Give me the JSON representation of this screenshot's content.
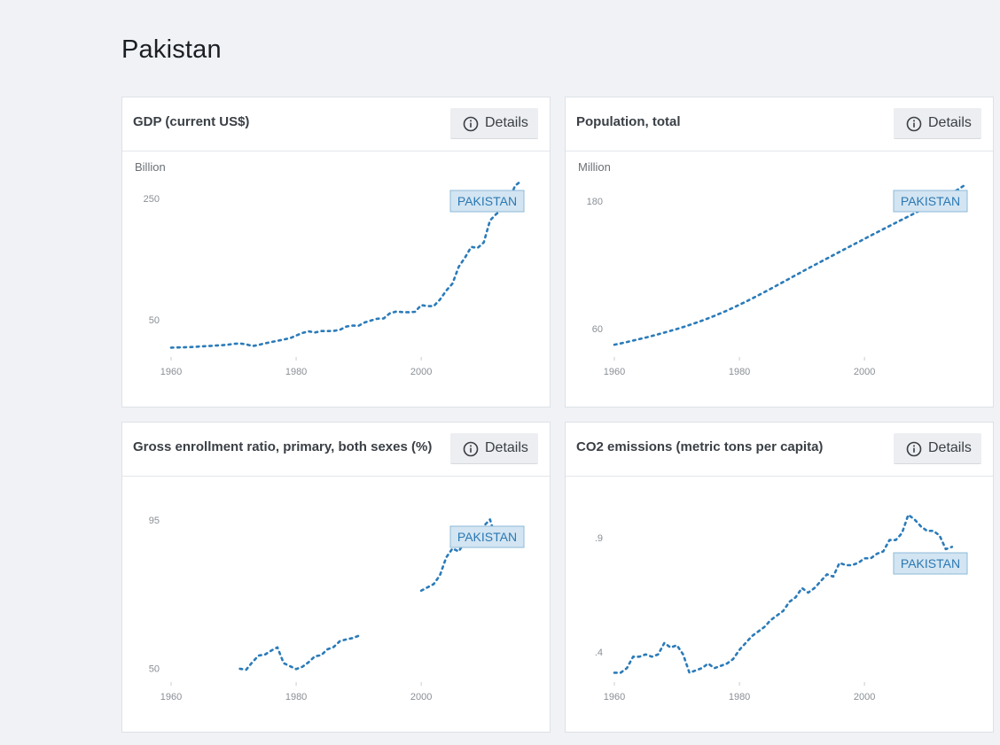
{
  "page_title": "Pakistan",
  "details_label": "Details",
  "colors": {
    "line": "#2b7bb9",
    "background": "#f0f2f5",
    "legend_fill": "#d3e5f2"
  },
  "icons": {
    "details": "info-icon"
  },
  "chart_data": [
    {
      "type": "line",
      "title": "GDP (current US$)",
      "unit": "Billion",
      "series_label": "PAKISTAN",
      "yticks": [
        {
          "label": "250",
          "value": 250
        },
        {
          "label": "50",
          "value": 50
        }
      ],
      "xticks": [
        1960,
        1980,
        2000
      ],
      "xlim": [
        1960,
        2016
      ],
      "ylim": [
        0,
        272
      ],
      "x": [
        1960,
        1961,
        1962,
        1963,
        1964,
        1965,
        1966,
        1967,
        1968,
        1969,
        1970,
        1971,
        1972,
        1973,
        1974,
        1975,
        1976,
        1977,
        1978,
        1979,
        1980,
        1981,
        1982,
        1983,
        1984,
        1985,
        1986,
        1987,
        1988,
        1989,
        1990,
        1991,
        1992,
        1993,
        1994,
        1995,
        1996,
        1997,
        1998,
        1999,
        2000,
        2001,
        2002,
        2003,
        2004,
        2005,
        2006,
        2007,
        2008,
        2009,
        2010,
        2011,
        2012,
        2013,
        2014,
        2015,
        2016
      ],
      "y": [
        3.7,
        4.1,
        4.3,
        4.6,
        5.2,
        5.9,
        6.4,
        7.1,
        7.7,
        8.5,
        10.0,
        10.6,
        9.3,
        6.3,
        8.3,
        10.8,
        12.9,
        15.0,
        17.2,
        19.3,
        23.7,
        28.0,
        30.7,
        28.7,
        31.2,
        31.1,
        31.4,
        33.2,
        38.5,
        40.2,
        40.0,
        45.5,
        48.6,
        51.5,
        51.9,
        60.6,
        63.3,
        62.4,
        62.2,
        62.9,
        73.9,
        72.3,
        72.3,
        83.2,
        97.9,
        109.5,
        137.3,
        152.4,
        170.1,
        168.2,
        177.4,
        213.7,
        224.4,
        231.2,
        244.4,
        271.1,
        278.9
      ]
    },
    {
      "type": "line",
      "title": "Population, total",
      "unit": "Million",
      "series_label": "PAKISTAN",
      "yticks": [
        {
          "label": "180",
          "value": 180
        },
        {
          "label": "60",
          "value": 60
        }
      ],
      "xticks": [
        1960,
        1980,
        2000
      ],
      "xlim": [
        1960,
        2016
      ],
      "ylim": [
        40,
        195
      ],
      "x": [
        1960,
        1961,
        1962,
        1963,
        1964,
        1965,
        1966,
        1967,
        1968,
        1969,
        1970,
        1971,
        1972,
        1973,
        1974,
        1975,
        1976,
        1977,
        1978,
        1979,
        1980,
        1981,
        1982,
        1983,
        1984,
        1985,
        1986,
        1987,
        1988,
        1989,
        1990,
        1991,
        1992,
        1993,
        1994,
        1995,
        1996,
        1997,
        1998,
        1999,
        2000,
        2001,
        2002,
        2003,
        2004,
        2005,
        2006,
        2007,
        2008,
        2009,
        2010,
        2011,
        2012,
        2013,
        2014,
        2015,
        2016
      ],
      "y": [
        44.9,
        46.1,
        47.4,
        48.8,
        50.2,
        51.6,
        53.1,
        54.7,
        56.3,
        58.0,
        59.7,
        61.5,
        63.4,
        65.4,
        67.5,
        69.7,
        72.0,
        74.5,
        77.0,
        79.7,
        82.5,
        85.3,
        88.3,
        91.3,
        94.4,
        97.5,
        100.7,
        103.9,
        107.1,
        110.3,
        113.5,
        116.7,
        119.8,
        122.9,
        126.0,
        129.1,
        132.2,
        135.3,
        138.4,
        141.4,
        144.5,
        147.6,
        150.6,
        153.6,
        156.6,
        159.6,
        162.6,
        165.5,
        168.5,
        171.6,
        174.6,
        177.8,
        181.0,
        184.3,
        187.6,
        191.1,
        194.9
      ]
    },
    {
      "type": "line",
      "title": "Gross enrollment ratio, primary, both sexes (%)",
      "unit": "",
      "series_label": "PAKISTAN",
      "yticks": [
        {
          "label": "95",
          "value": 95
        },
        {
          "label": "50",
          "value": 50
        }
      ],
      "xticks": [
        1960,
        1980,
        2000
      ],
      "xlim": [
        1960,
        2016
      ],
      "ylim": [
        48,
        98
      ],
      "x": [
        1971,
        1972,
        1973,
        1974,
        1975,
        1976,
        1977,
        1978,
        1979,
        1980,
        1981,
        1982,
        1983,
        1984,
        1985,
        1986,
        1987,
        1988,
        1989,
        1990,
        null,
        2000,
        2001,
        2002,
        2003,
        2004,
        2005,
        2006,
        2007,
        2008,
        2009,
        2010,
        2011,
        2012,
        2013,
        2014,
        2015
      ],
      "y": [
        49.9,
        49.6,
        51.9,
        53.9,
        54.2,
        55.4,
        56.4,
        51.6,
        50.7,
        49.8,
        50.5,
        51.9,
        53.7,
        54.0,
        55.8,
        56.5,
        58.3,
        58.8,
        59.2,
        59.9,
        null,
        73.6,
        74.6,
        75.6,
        78.3,
        83.7,
        86.4,
        85.5,
        88.6,
        88.7,
        91.8,
        93.2,
        95.2,
        88.9,
        88.4,
        88.6,
        92.9
      ]
    },
    {
      "type": "line",
      "title": "CO2 emissions (metric tons per capita)",
      "unit": "",
      "series_label": "PAKISTAN",
      "yticks": [
        {
          "label": ".9",
          "value": 0.9
        },
        {
          "label": ".4",
          "value": 0.4
        }
      ],
      "xticks": [
        1960,
        1980,
        2000
      ],
      "xlim": [
        1960,
        2016
      ],
      "ylim": [
        0.3,
        1.02
      ],
      "x": [
        1960,
        1961,
        1962,
        1963,
        1964,
        1965,
        1966,
        1967,
        1968,
        1969,
        1970,
        1971,
        1972,
        1973,
        1974,
        1975,
        1976,
        1977,
        1978,
        1979,
        1980,
        1981,
        1982,
        1983,
        1984,
        1985,
        1986,
        1987,
        1988,
        1989,
        1990,
        1991,
        1992,
        1993,
        1994,
        1995,
        1996,
        1997,
        1998,
        1999,
        2000,
        2001,
        2002,
        2003,
        2004,
        2005,
        2006,
        2007,
        2008,
        2009,
        2010,
        2011,
        2012,
        2013,
        2014
      ],
      "y": [
        0.31,
        0.31,
        0.33,
        0.38,
        0.38,
        0.39,
        0.38,
        0.39,
        0.44,
        0.42,
        0.43,
        0.39,
        0.31,
        0.32,
        0.33,
        0.35,
        0.33,
        0.34,
        0.35,
        0.37,
        0.41,
        0.44,
        0.47,
        0.49,
        0.51,
        0.54,
        0.56,
        0.58,
        0.62,
        0.64,
        0.68,
        0.66,
        0.68,
        0.71,
        0.74,
        0.73,
        0.79,
        0.78,
        0.78,
        0.79,
        0.81,
        0.81,
        0.83,
        0.84,
        0.89,
        0.89,
        0.92,
        1.0,
        0.98,
        0.95,
        0.93,
        0.93,
        0.91,
        0.85,
        0.86
      ]
    }
  ]
}
